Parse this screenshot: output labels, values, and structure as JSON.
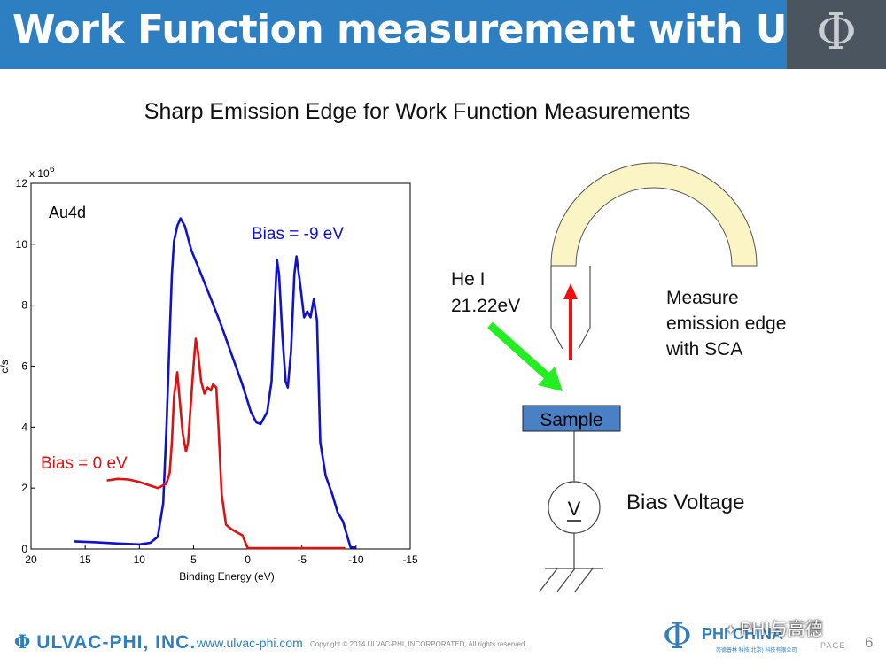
{
  "header": {
    "title": "Work Function measurement with UPS",
    "logo_glyph": "Φ"
  },
  "subtitle": "Sharp Emission Edge for Work Function Measurements",
  "chart_data": {
    "type": "line",
    "exponent_label": "x 10",
    "exponent_value": "6",
    "sample_label": "Au4d",
    "xlabel": "Binding Energy (eV)",
    "ylabel": "c/s",
    "xlim": [
      20,
      -15
    ],
    "ylim": [
      0,
      12
    ],
    "x_ticks": [
      20,
      15,
      10,
      5,
      0,
      -5,
      -10,
      -15
    ],
    "y_ticks": [
      0,
      2,
      4,
      6,
      8,
      10,
      12
    ],
    "series": [
      {
        "name": "Bias = -9 eV",
        "color": "#1010d0",
        "points": [
          [
            16,
            0.25
          ],
          [
            14,
            0.22
          ],
          [
            12,
            0.18
          ],
          [
            10,
            0.15
          ],
          [
            9,
            0.2
          ],
          [
            8.3,
            0.4
          ],
          [
            7.8,
            1.5
          ],
          [
            7.5,
            4
          ],
          [
            7.2,
            7
          ],
          [
            7,
            9
          ],
          [
            6.8,
            10.1
          ],
          [
            6.5,
            10.6
          ],
          [
            6.2,
            10.85
          ],
          [
            5.8,
            10.6
          ],
          [
            5.2,
            9.8
          ],
          [
            4.5,
            9.2
          ],
          [
            3.5,
            8.3
          ],
          [
            2.5,
            7.4
          ],
          [
            1.5,
            6.4
          ],
          [
            0.5,
            5.4
          ],
          [
            -0.3,
            4.5
          ],
          [
            -0.8,
            4.15
          ],
          [
            -1.2,
            4.1
          ],
          [
            -1.8,
            4.5
          ],
          [
            -2.2,
            5.5
          ],
          [
            -2.5,
            8
          ],
          [
            -2.7,
            9.5
          ],
          [
            -2.9,
            9.0
          ],
          [
            -3.2,
            7
          ],
          [
            -3.5,
            5.5
          ],
          [
            -3.7,
            5.3
          ],
          [
            -4,
            6.5
          ],
          [
            -4.3,
            9
          ],
          [
            -4.5,
            9.6
          ],
          [
            -4.8,
            8.8
          ],
          [
            -5.2,
            7.6
          ],
          [
            -5.5,
            7.8
          ],
          [
            -5.8,
            7.6
          ],
          [
            -6.1,
            8.2
          ],
          [
            -6.4,
            7.5
          ],
          [
            -6.7,
            3.5
          ],
          [
            -7.2,
            2.4
          ],
          [
            -7.8,
            1.8
          ],
          [
            -8.3,
            1.2
          ],
          [
            -8.8,
            0.9
          ],
          [
            -9.2,
            0.4
          ],
          [
            -9.5,
            0.05
          ],
          [
            -10,
            0.05
          ]
        ]
      },
      {
        "name": "Bias = 0 eV",
        "color": "#e01010",
        "points": [
          [
            13,
            2.25
          ],
          [
            12,
            2.3
          ],
          [
            11,
            2.28
          ],
          [
            10,
            2.2
          ],
          [
            9,
            2.08
          ],
          [
            8.3,
            2.0
          ],
          [
            8,
            2.05
          ],
          [
            7.5,
            2.15
          ],
          [
            7.2,
            2.5
          ],
          [
            7,
            3.5
          ],
          [
            6.8,
            5
          ],
          [
            6.5,
            5.8
          ],
          [
            6.3,
            5.0
          ],
          [
            6,
            3.8
          ],
          [
            5.7,
            3.2
          ],
          [
            5.5,
            3.5
          ],
          [
            5.2,
            5
          ],
          [
            5,
            6
          ],
          [
            4.8,
            6.9
          ],
          [
            4.6,
            6.5
          ],
          [
            4.3,
            5.5
          ],
          [
            4,
            5.1
          ],
          [
            3.7,
            5.3
          ],
          [
            3.4,
            5.2
          ],
          [
            3.2,
            5.4
          ],
          [
            2.9,
            5.3
          ],
          [
            2.7,
            4.0
          ],
          [
            2.4,
            1.8
          ],
          [
            2,
            0.8
          ],
          [
            1.5,
            0.65
          ],
          [
            1,
            0.55
          ],
          [
            0.5,
            0.45
          ],
          [
            0.2,
            0.2
          ],
          [
            0,
            0.03
          ],
          [
            -1,
            0.03
          ],
          [
            -3,
            0.03
          ],
          [
            -5,
            0.03
          ],
          [
            -7,
            0.03
          ],
          [
            -9,
            0.03
          ]
        ]
      }
    ],
    "annotations": [
      {
        "text": "Bias = -9 eV",
        "color": "#1010d0"
      },
      {
        "text": "Bias = 0 eV",
        "color": "#e01010"
      }
    ]
  },
  "diagram": {
    "source_label_line1": "He I",
    "source_label_line2": "21.22eV",
    "measure_line1": "Measure",
    "measure_line2": "emission edge",
    "measure_line3": "with SCA",
    "sample_label": "Sample",
    "voltmeter_label": "V",
    "bias_label": "Bias Voltage",
    "colors": {
      "analyzer": "#fbf5c5",
      "sample": "#4a80c6",
      "photon_arrow": "#22ee22",
      "electron_arrow": "#ee1111"
    }
  },
  "footer": {
    "brand": "ULVAC-PHI, INC.",
    "brand_glyph": "Φ",
    "url": "www.ulvac-phi.com",
    "copyright": "Copyright © 2014 ULVAC-PHI, INCORPORATED, All rights reserved.",
    "phichina_glyph": "Φ",
    "phichina_text": "PHI CHINA",
    "phichina_sub": "芮德普林 科技(北京) 科技有限公司",
    "watermark": "PHI与高德",
    "page_label": "PAGE",
    "page_number": "6"
  }
}
